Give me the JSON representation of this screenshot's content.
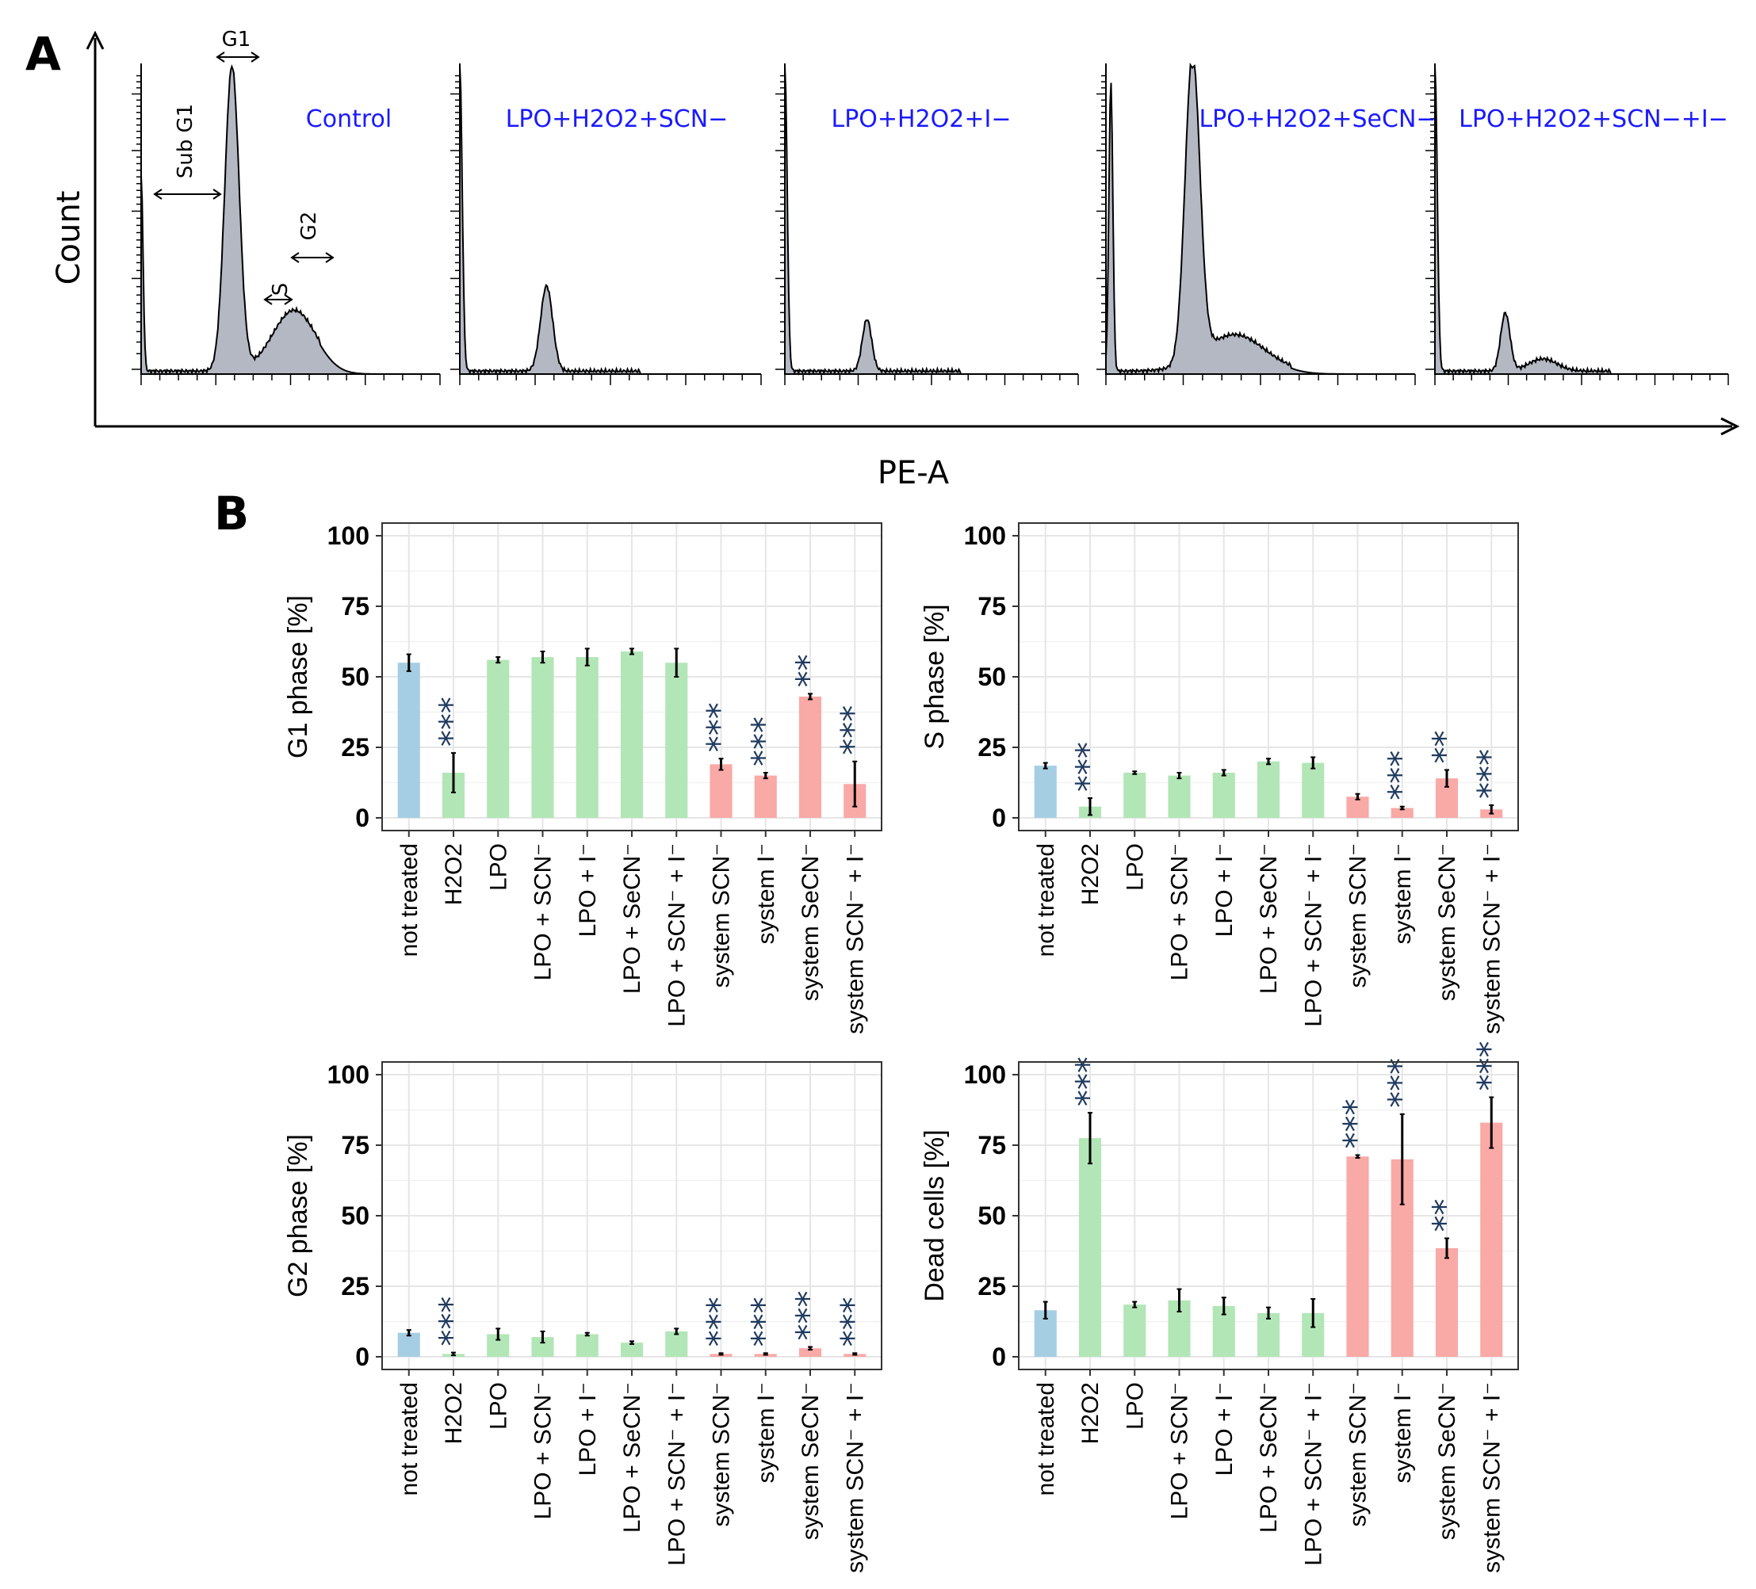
{
  "panel_a": {
    "label": "A",
    "ylabel": "Count",
    "xlabel": "PE-A",
    "annotations": {
      "sub_g1": "Sub G1",
      "g1": "G1",
      "s": "S",
      "g2": "G2"
    },
    "histograms": [
      {
        "title": "Control",
        "title_html": "Control",
        "peaks": [
          {
            "pos": 0.0,
            "h": 0.64,
            "w": 0.008
          },
          {
            "pos": 0.38,
            "h": 1.0,
            "w": 0.03
          },
          {
            "pos": 0.64,
            "h": 0.2,
            "w": 0.09
          }
        ]
      },
      {
        "title": "LPO+H2O2+SCN−",
        "peaks": [
          {
            "pos": 0.0,
            "h": 1.0,
            "w": 0.01
          },
          {
            "pos": 0.36,
            "h": 0.28,
            "w": 0.025
          }
        ]
      },
      {
        "title": "LPO+H2O2+I−",
        "peaks": [
          {
            "pos": 0.0,
            "h": 1.0,
            "w": 0.01
          },
          {
            "pos": 0.35,
            "h": 0.17,
            "w": 0.02
          }
        ]
      },
      {
        "title": "LPO+H2O2+SeCN−",
        "peaks": [
          {
            "pos": 0.02,
            "h": 0.95,
            "w": 0.008
          },
          {
            "pos": 0.35,
            "h": 1.0,
            "w": 0.03
          },
          {
            "pos": 0.52,
            "h": 0.12,
            "w": 0.12
          }
        ]
      },
      {
        "title": "LPO+H2O2+SCN−+I−",
        "peaks": [
          {
            "pos": 0.0,
            "h": 1.0,
            "w": 0.01
          },
          {
            "pos": 0.3,
            "h": 0.19,
            "w": 0.02
          },
          {
            "pos": 0.46,
            "h": 0.04,
            "w": 0.06
          }
        ]
      }
    ]
  },
  "panel_b": {
    "label": "B"
  },
  "colors": {
    "blue": "#a6cee3",
    "green": "#b2e6b6",
    "red": "#f9a9a6",
    "star": "#1f3a5f",
    "grid": "#e6e6e6",
    "histfill": "#b4b8c2",
    "title_blue": "#1a1aff"
  },
  "chart_data": [
    {
      "type": "bar",
      "ylabel": "G1 phase [%]",
      "ylim": [
        0,
        100
      ],
      "yticks": [
        "0",
        "25",
        "50",
        "75",
        "100"
      ],
      "categories": [
        "not treated",
        "H2O2",
        "LPO",
        "LPO + SCN⁻",
        "LPO + I⁻",
        "LPO + SeCN⁻",
        "LPO + SCN⁻ + I⁻",
        "system SCN⁻",
        "system I⁻",
        "system SeCN⁻",
        "system SCN⁻ + I⁻"
      ],
      "values": [
        55,
        16,
        56,
        57,
        57,
        59,
        55,
        19,
        15,
        43,
        12
      ],
      "errors": [
        3,
        7,
        1,
        2,
        3,
        1,
        5,
        2,
        1,
        1,
        8
      ],
      "groups": [
        "blue",
        "green",
        "green",
        "green",
        "green",
        "green",
        "green",
        "red",
        "red",
        "red",
        "red"
      ],
      "significance": [
        "",
        "***",
        "",
        "",
        "",
        "",
        "",
        "***",
        "***",
        "**",
        "***"
      ]
    },
    {
      "type": "bar",
      "ylabel": "S phase [%]",
      "ylim": [
        0,
        100
      ],
      "yticks": [
        "0",
        "25",
        "50",
        "75",
        "100"
      ],
      "categories": [
        "not treated",
        "H2O2",
        "LPO",
        "LPO + SCN⁻",
        "LPO + I⁻",
        "LPO + SeCN⁻",
        "LPO + SCN⁻ + I⁻",
        "system SCN⁻",
        "system I⁻",
        "system SeCN⁻",
        "system SCN⁻ + I⁻"
      ],
      "values": [
        18.5,
        4,
        16,
        15,
        16,
        20,
        19.5,
        7.5,
        3.5,
        14,
        3
      ],
      "errors": [
        1,
        3,
        0.5,
        1,
        1,
        1,
        2,
        1,
        0.5,
        3,
        1.5
      ],
      "groups": [
        "blue",
        "green",
        "green",
        "green",
        "green",
        "green",
        "green",
        "red",
        "red",
        "red",
        "red"
      ],
      "significance": [
        "",
        "***",
        "",
        "",
        "",
        "",
        "",
        "",
        "***",
        "**",
        "***"
      ]
    },
    {
      "type": "bar",
      "ylabel": "G2 phase [%]",
      "ylim": [
        0,
        100
      ],
      "yticks": [
        "0",
        "25",
        "50",
        "75",
        "100"
      ],
      "categories": [
        "not treated",
        "H2O2",
        "LPO",
        "LPO + SCN⁻",
        "LPO + I⁻",
        "LPO + SeCN⁻",
        "LPO + SCN⁻ + I⁻",
        "system SCN⁻",
        "system I⁻",
        "system SeCN⁻",
        "system SCN⁻ + I⁻"
      ],
      "values": [
        8.5,
        1,
        8,
        7,
        8,
        5,
        9,
        1,
        1,
        3,
        1
      ],
      "errors": [
        1,
        0.5,
        2,
        2,
        0.5,
        0.5,
        1,
        0.3,
        0.3,
        0.5,
        0.3
      ],
      "groups": [
        "blue",
        "green",
        "green",
        "green",
        "green",
        "green",
        "green",
        "red",
        "red",
        "red",
        "red"
      ],
      "significance": [
        "",
        "***",
        "",
        "",
        "",
        "",
        "",
        "***",
        "***",
        "***",
        "***"
      ]
    },
    {
      "type": "bar",
      "ylabel": "Dead cells [%]",
      "ylim": [
        0,
        100
      ],
      "yticks": [
        "0",
        "25",
        "50",
        "75",
        "100"
      ],
      "categories": [
        "not treated",
        "H2O2",
        "LPO",
        "LPO + SCN⁻",
        "LPO + I⁻",
        "LPO + SeCN⁻",
        "LPO + SCN⁻ + I⁻",
        "system SCN⁻",
        "system I⁻",
        "system SeCN⁻",
        "system SCN⁻ + I⁻"
      ],
      "values": [
        16.5,
        77.5,
        18.5,
        20,
        18,
        15.5,
        15.5,
        71,
        70,
        38.5,
        83
      ],
      "errors": [
        3,
        9,
        1,
        4,
        3,
        2,
        5,
        0.5,
        16,
        3.5,
        9
      ],
      "groups": [
        "blue",
        "green",
        "green",
        "green",
        "green",
        "green",
        "green",
        "red",
        "red",
        "red",
        "red"
      ],
      "significance": [
        "",
        "***",
        "",
        "",
        "",
        "",
        "",
        "***",
        "***",
        "**",
        "***"
      ]
    }
  ]
}
